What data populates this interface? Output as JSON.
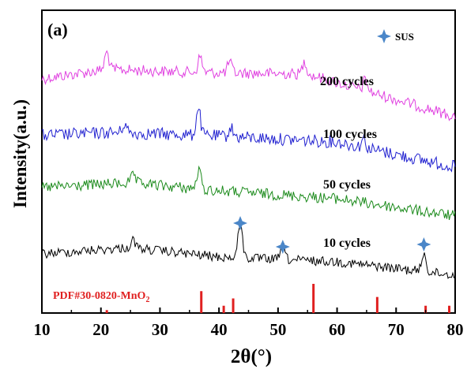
{
  "chart_data": {
    "type": "line",
    "panel_label": "(a)",
    "xlabel": "2θ(°)",
    "ylabel": "Intensity(a.u.)",
    "xlim": [
      10,
      80
    ],
    "x_ticks": [
      10,
      20,
      30,
      40,
      50,
      60,
      70,
      80
    ],
    "grid": false,
    "legend": {
      "placement": "top-right",
      "items": [
        {
          "name": "SUS",
          "marker": "four-point-star",
          "color": "#4a86c8"
        }
      ]
    },
    "series": [
      {
        "name": "200 cycles",
        "color": "#e040e0",
        "peaks": [
          {
            "x": 21.0,
            "h": 0.55
          },
          {
            "x": 36.8,
            "h": 0.5
          },
          {
            "x": 41.8,
            "h": 0.35
          },
          {
            "x": 54.5,
            "h": 0.4
          },
          {
            "x": 64.8,
            "h": 0.35
          }
        ]
      },
      {
        "name": "100 cycles",
        "color": "#2020d0",
        "peaks": [
          {
            "x": 36.5,
            "h": 0.9
          },
          {
            "x": 24.0,
            "h": 0.3
          },
          {
            "x": 42.0,
            "h": 0.3
          },
          {
            "x": 64.5,
            "h": 0.3
          }
        ]
      },
      {
        "name": "50 cycles",
        "color": "#1a8a1a",
        "peaks": [
          {
            "x": 36.6,
            "h": 0.6
          },
          {
            "x": 25.5,
            "h": 0.25
          }
        ]
      },
      {
        "name": "10 cycles",
        "color": "#000000",
        "peaks": [
          {
            "x": 43.6,
            "h": 1.2
          },
          {
            "x": 50.8,
            "h": 0.45
          },
          {
            "x": 74.7,
            "h": 0.6
          },
          {
            "x": 25.5,
            "h": 0.25
          }
        ]
      }
    ],
    "sus_peaks": [
      43.6,
      50.8,
      74.7
    ],
    "reference": {
      "label_main": "PDF#30-0820-MnO",
      "label_sub": "2",
      "color": "#e02020",
      "peaks": [
        {
          "x": 21.0,
          "rel": 0.1
        },
        {
          "x": 37.0,
          "rel": 0.75
        },
        {
          "x": 40.8,
          "rel": 0.25
        },
        {
          "x": 42.4,
          "rel": 0.5
        },
        {
          "x": 56.0,
          "rel": 1.0
        },
        {
          "x": 66.8,
          "rel": 0.55
        },
        {
          "x": 75.0,
          "rel": 0.25
        },
        {
          "x": 79.0,
          "rel": 0.25
        }
      ]
    }
  }
}
